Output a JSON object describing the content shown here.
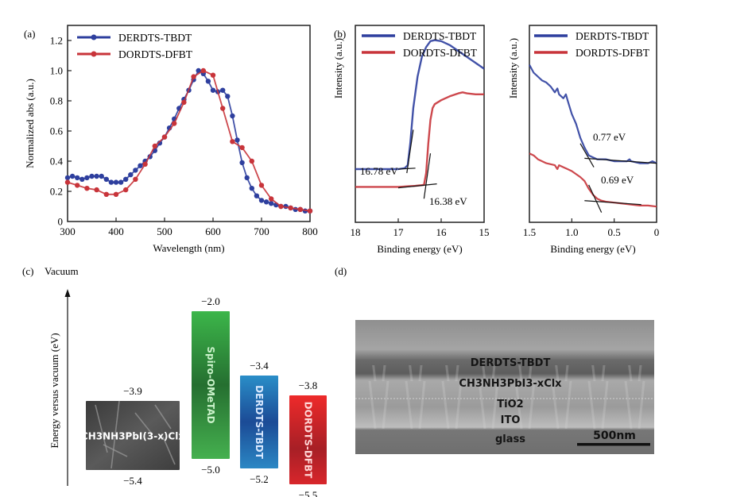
{
  "panel_labels": {
    "a": "(a)",
    "b": "(b)",
    "c": "(c)",
    "d": "(d)"
  },
  "chart_data": [
    {
      "id": "a",
      "type": "line",
      "title": "",
      "xlabel": "Wavelength (nm)",
      "ylabel": "Normalized abs (a.u.)",
      "xlim": [
        300,
        800
      ],
      "ylim": [
        0,
        1.3
      ],
      "xticks": [
        300,
        400,
        500,
        600,
        700,
        800
      ],
      "yticks": [
        0,
        0.2,
        0.4,
        0.6,
        0.8,
        1.0,
        1.2
      ],
      "ytick_labels": [
        "0",
        "0.2",
        "0.4",
        "0.6",
        "0.8",
        "1.0",
        "1.2"
      ],
      "legend_position": "top-left",
      "grid": false,
      "markers": true,
      "series": [
        {
          "name": "DERDTS-TBDT",
          "color": "#2e3f9e",
          "x": [
            300,
            310,
            320,
            330,
            340,
            350,
            360,
            370,
            380,
            390,
            400,
            410,
            420,
            430,
            440,
            450,
            460,
            470,
            480,
            490,
            500,
            510,
            520,
            530,
            540,
            550,
            560,
            570,
            580,
            590,
            600,
            610,
            620,
            630,
            640,
            650,
            660,
            670,
            680,
            690,
            700,
            710,
            720,
            730,
            740,
            750,
            760,
            770,
            780,
            790,
            800
          ],
          "y": [
            0.29,
            0.3,
            0.29,
            0.28,
            0.29,
            0.3,
            0.3,
            0.3,
            0.28,
            0.26,
            0.26,
            0.26,
            0.28,
            0.31,
            0.34,
            0.37,
            0.4,
            0.43,
            0.47,
            0.52,
            0.56,
            0.62,
            0.68,
            0.75,
            0.81,
            0.87,
            0.94,
            1.0,
            0.98,
            0.93,
            0.87,
            0.86,
            0.87,
            0.83,
            0.7,
            0.54,
            0.39,
            0.29,
            0.22,
            0.17,
            0.14,
            0.13,
            0.12,
            0.11,
            0.1,
            0.1,
            0.09,
            0.08,
            0.08,
            0.07,
            0.07
          ]
        },
        {
          "name": "DORDTS-DFBT",
          "color": "#c8343a",
          "x": [
            300,
            320,
            340,
            360,
            380,
            400,
            420,
            440,
            460,
            480,
            500,
            520,
            540,
            560,
            580,
            600,
            620,
            640,
            660,
            680,
            700,
            720,
            740,
            760,
            780,
            800
          ],
          "y": [
            0.26,
            0.24,
            0.22,
            0.21,
            0.18,
            0.18,
            0.21,
            0.28,
            0.38,
            0.5,
            0.56,
            0.65,
            0.79,
            0.96,
            1.0,
            0.97,
            0.75,
            0.53,
            0.49,
            0.4,
            0.24,
            0.15,
            0.1,
            0.09,
            0.08,
            0.07
          ]
        }
      ]
    },
    {
      "id": "b",
      "type": "line",
      "xlabel": "Binding energy (eV)",
      "ylabel": "Intensity (a.u.)",
      "xlim": [
        18,
        15
      ],
      "ylim": [
        0,
        1
      ],
      "xticks": [
        18,
        17,
        16,
        15
      ],
      "legend_position": "top",
      "grid": false,
      "markers": false,
      "annotations": [
        {
          "text": "16.78 eV",
          "value": 16.78,
          "series": "DERDTS-TBDT"
        },
        {
          "text": "16.38 eV",
          "value": 16.38,
          "series": "DORDTS-DFBT"
        }
      ],
      "series": [
        {
          "name": "DERDTS-TBDT",
          "color": "#2e3f9e",
          "x": [
            18.0,
            17.5,
            17.0,
            16.85,
            16.78,
            16.72,
            16.65,
            16.55,
            16.45,
            16.35,
            16.25,
            16.15,
            16.0,
            15.8,
            15.6,
            15.4,
            15.2,
            15.0
          ],
          "y": [
            0.27,
            0.27,
            0.27,
            0.275,
            0.29,
            0.4,
            0.58,
            0.74,
            0.84,
            0.89,
            0.92,
            0.925,
            0.92,
            0.9,
            0.87,
            0.84,
            0.81,
            0.78
          ],
          "tangents": [
            {
              "x": [
                17.0,
                16.6
              ],
              "y": [
                0.27,
                0.275
              ]
            },
            {
              "x": [
                16.8,
                16.65
              ],
              "y": [
                0.25,
                0.47
              ]
            }
          ]
        },
        {
          "name": "DORDTS-DFBT",
          "color": "#c8343a",
          "x": [
            18.0,
            17.5,
            17.0,
            16.6,
            16.4,
            16.35,
            16.3,
            16.25,
            16.2,
            16.15,
            16.0,
            15.8,
            15.6,
            15.5,
            15.4,
            15.2,
            15.0
          ],
          "y": [
            0.18,
            0.18,
            0.18,
            0.185,
            0.19,
            0.25,
            0.4,
            0.52,
            0.58,
            0.6,
            0.62,
            0.64,
            0.655,
            0.66,
            0.655,
            0.65,
            0.65
          ],
          "tangents": [
            {
              "x": [
                17.0,
                16.1
              ],
              "y": [
                0.175,
                0.195
              ]
            },
            {
              "x": [
                16.4,
                16.25
              ],
              "y": [
                0.12,
                0.35
              ]
            }
          ]
        }
      ]
    },
    {
      "id": "b2",
      "type": "line",
      "xlabel": "Binding energy (eV)",
      "ylabel": "Intensity (a.u.)",
      "xlim": [
        1.5,
        0
      ],
      "ylim": [
        0,
        1
      ],
      "xticks": [
        1.5,
        1.0,
        0.5,
        0
      ],
      "xtick_labels": [
        "1.5",
        "1.0",
        "0.5",
        "0"
      ],
      "legend_position": "top",
      "grid": false,
      "markers": false,
      "annotations": [
        {
          "text": "0.77 eV",
          "value": 0.77,
          "series": "DERDTS-TBDT"
        },
        {
          "text": "0.69 eV",
          "value": 0.69,
          "series": "DORDTS-DFBT"
        }
      ],
      "series": [
        {
          "name": "DERDTS-TBDT",
          "color": "#2e3f9e",
          "x": [
            1.5,
            1.45,
            1.4,
            1.35,
            1.3,
            1.25,
            1.2,
            1.17,
            1.15,
            1.1,
            1.07,
            1.05,
            1.0,
            0.95,
            0.9,
            0.85,
            0.8,
            0.75,
            0.7,
            0.6,
            0.5,
            0.4,
            0.35,
            0.32,
            0.3,
            0.2,
            0.1,
            0.05,
            0.0
          ],
          "y": [
            0.8,
            0.76,
            0.74,
            0.72,
            0.71,
            0.69,
            0.66,
            0.68,
            0.65,
            0.63,
            0.65,
            0.62,
            0.55,
            0.5,
            0.43,
            0.38,
            0.34,
            0.33,
            0.32,
            0.32,
            0.31,
            0.31,
            0.31,
            0.32,
            0.31,
            0.3,
            0.3,
            0.31,
            0.3
          ],
          "tangents": [
            {
              "x": [
                0.85,
                0.0
              ],
              "y": [
                0.325,
                0.3
              ]
            },
            {
              "x": [
                0.9,
                0.74
              ],
              "y": [
                0.4,
                0.28
              ]
            }
          ]
        },
        {
          "name": "DORDTS-DFBT",
          "color": "#c8343a",
          "x": [
            1.5,
            1.45,
            1.4,
            1.35,
            1.3,
            1.2,
            1.17,
            1.15,
            1.1,
            1.05,
            1.0,
            0.9,
            0.85,
            0.8,
            0.75,
            0.7,
            0.65,
            0.6,
            0.5,
            0.4,
            0.3,
            0.2,
            0.1,
            0.0
          ],
          "y": [
            0.35,
            0.34,
            0.32,
            0.31,
            0.3,
            0.29,
            0.27,
            0.29,
            0.28,
            0.27,
            0.26,
            0.23,
            0.21,
            0.17,
            0.14,
            0.12,
            0.11,
            0.105,
            0.1,
            0.095,
            0.09,
            0.085,
            0.085,
            0.08
          ],
          "tangents": [
            {
              "x": [
                0.85,
                0.18
              ],
              "y": [
                0.11,
                0.09
              ]
            },
            {
              "x": [
                0.8,
                0.65
              ],
              "y": [
                0.19,
                0.05
              ]
            }
          ]
        }
      ]
    },
    {
      "id": "c",
      "type": "bar",
      "title": "Vacuum",
      "ylabel": "Energy versus vacuum (eV)",
      "ylim": [
        -5.8,
        -1.5
      ],
      "bars": [
        {
          "label": "CH3NH3PbI(3-x)Clx",
          "top": -3.9,
          "bottom": -5.4,
          "top_label": "−3.9",
          "bottom_label": "−5.4",
          "color": "#4a4a4a"
        },
        {
          "label": "Spiro-OMeTAD",
          "top": -2.0,
          "bottom": -5.0,
          "top_label": "−2.0",
          "bottom_label": "−5.0",
          "color": "#2f9a3a"
        },
        {
          "label": "DERDTS-TBDT",
          "top": -3.4,
          "bottom": -5.2,
          "top_label": "−3.4",
          "bottom_label": "−5.2",
          "color": "#1f6fb0"
        },
        {
          "label": "DORDTS-DFBT",
          "top": -3.8,
          "bottom": -5.5,
          "top_label": "−3.8",
          "bottom_label": "−5.5",
          "color": "#d42a2e"
        }
      ]
    }
  ],
  "sem_image": {
    "layers": [
      "DERDTS-TBDT",
      "CH3NH3PbI3-xClx",
      "TiO2",
      "ITO",
      "glass"
    ],
    "scale_bar": "500nm"
  }
}
